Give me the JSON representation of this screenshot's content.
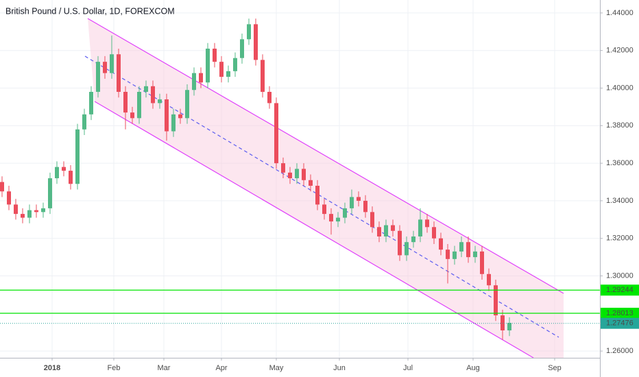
{
  "chart_data": {
    "type": "candlestick",
    "title": "British Pound / U.S. Dollar, 1D, FOREXCOM",
    "up_color": "#53b987",
    "down_color": "#eb4d5c",
    "grid": true,
    "candles": [
      [
        1.35,
        1.353,
        1.342,
        1.345
      ],
      [
        1.345,
        1.348,
        1.335,
        1.338
      ],
      [
        1.338,
        1.341,
        1.33,
        1.333
      ],
      [
        1.333,
        1.336,
        1.328,
        1.331
      ],
      [
        1.331,
        1.338,
        1.328,
        1.335
      ],
      [
        1.335,
        1.338,
        1.331,
        1.334
      ],
      [
        1.334,
        1.339,
        1.331,
        1.336
      ],
      [
        1.336,
        1.355,
        1.333,
        1.352
      ],
      [
        1.352,
        1.361,
        1.349,
        1.358
      ],
      [
        1.358,
        1.361,
        1.353,
        1.356
      ],
      [
        1.356,
        1.359,
        1.346,
        1.349
      ],
      [
        1.349,
        1.381,
        1.346,
        1.378
      ],
      [
        1.378,
        1.389,
        1.375,
        1.386
      ],
      [
        1.386,
        1.401,
        1.383,
        1.398
      ],
      [
        1.398,
        1.417,
        1.395,
        1.414
      ],
      [
        1.414,
        1.417,
        1.405,
        1.408
      ],
      [
        1.408,
        1.428,
        1.405,
        1.418
      ],
      [
        1.418,
        1.421,
        1.395,
        1.398
      ],
      [
        1.398,
        1.401,
        1.378,
        1.387
      ],
      [
        1.387,
        1.39,
        1.381,
        1.384
      ],
      [
        1.384,
        1.401,
        1.381,
        1.398
      ],
      [
        1.398,
        1.404,
        1.395,
        1.401
      ],
      [
        1.401,
        1.404,
        1.389,
        1.392
      ],
      [
        1.392,
        1.397,
        1.389,
        1.394
      ],
      [
        1.394,
        1.397,
        1.372,
        1.377
      ],
      [
        1.377,
        1.389,
        1.374,
        1.386
      ],
      [
        1.386,
        1.389,
        1.381,
        1.384
      ],
      [
        1.384,
        1.402,
        1.381,
        1.399
      ],
      [
        1.399,
        1.411,
        1.396,
        1.408
      ],
      [
        1.408,
        1.411,
        1.4,
        1.403
      ],
      [
        1.403,
        1.424,
        1.4,
        1.421
      ],
      [
        1.421,
        1.424,
        1.411,
        1.414
      ],
      [
        1.414,
        1.417,
        1.403,
        1.406
      ],
      [
        1.406,
        1.412,
        1.403,
        1.409
      ],
      [
        1.409,
        1.419,
        1.406,
        1.416
      ],
      [
        1.416,
        1.429,
        1.413,
        1.426
      ],
      [
        1.426,
        1.437,
        1.423,
        1.434
      ],
      [
        1.434,
        1.437,
        1.412,
        1.415
      ],
      [
        1.415,
        1.418,
        1.395,
        1.398
      ],
      [
        1.398,
        1.401,
        1.389,
        1.392
      ],
      [
        1.392,
        1.395,
        1.357,
        1.36
      ],
      [
        1.36,
        1.363,
        1.352,
        1.355
      ],
      [
        1.355,
        1.358,
        1.349,
        1.352
      ],
      [
        1.352,
        1.36,
        1.349,
        1.357
      ],
      [
        1.357,
        1.36,
        1.348,
        1.351
      ],
      [
        1.351,
        1.354,
        1.345,
        1.348
      ],
      [
        1.348,
        1.351,
        1.335,
        1.338
      ],
      [
        1.338,
        1.341,
        1.33,
        1.333
      ],
      [
        1.333,
        1.336,
        1.322,
        1.329
      ],
      [
        1.329,
        1.334,
        1.326,
        1.331
      ],
      [
        1.331,
        1.339,
        1.328,
        1.336
      ],
      [
        1.336,
        1.346,
        1.333,
        1.342
      ],
      [
        1.342,
        1.345,
        1.337,
        1.34
      ],
      [
        1.34,
        1.343,
        1.331,
        1.334
      ],
      [
        1.334,
        1.337,
        1.323,
        1.326
      ],
      [
        1.326,
        1.329,
        1.318,
        1.321
      ],
      [
        1.321,
        1.33,
        1.318,
        1.327
      ],
      [
        1.327,
        1.33,
        1.321,
        1.324
      ],
      [
        1.324,
        1.327,
        1.308,
        1.311
      ],
      [
        1.311,
        1.321,
        1.308,
        1.318
      ],
      [
        1.318,
        1.324,
        1.315,
        1.321
      ],
      [
        1.321,
        1.336,
        1.318,
        1.33
      ],
      [
        1.33,
        1.333,
        1.323,
        1.326
      ],
      [
        1.326,
        1.329,
        1.317,
        1.32
      ],
      [
        1.32,
        1.323,
        1.311,
        1.314
      ],
      [
        1.314,
        1.317,
        1.296,
        1.309
      ],
      [
        1.309,
        1.316,
        1.306,
        1.313
      ],
      [
        1.313,
        1.321,
        1.31,
        1.318
      ],
      [
        1.318,
        1.321,
        1.307,
        1.31
      ],
      [
        1.31,
        1.316,
        1.307,
        1.313
      ],
      [
        1.313,
        1.316,
        1.298,
        1.301
      ],
      [
        1.301,
        1.304,
        1.292,
        1.295
      ],
      [
        1.295,
        1.298,
        1.276,
        1.279
      ],
      [
        1.279,
        1.282,
        1.266,
        1.271
      ],
      [
        1.271,
        1.278,
        1.268,
        1.275
      ]
    ],
    "xlim": [
      -0.3,
      87.2
    ],
    "xticks": [
      {
        "value": 7.3,
        "label": "2018"
      },
      {
        "value": 16.3,
        "label": "Feb"
      },
      {
        "value": 23.6,
        "label": "Mar"
      },
      {
        "value": 32.0,
        "label": "Apr"
      },
      {
        "value": 40.0,
        "label": "May"
      },
      {
        "value": 49.2,
        "label": "Jun"
      },
      {
        "value": 59.2,
        "label": "Jul"
      },
      {
        "value": 68.7,
        "label": "Aug"
      },
      {
        "value": 80.6,
        "label": "Sep"
      }
    ],
    "ylim": [
      1.2564,
      1.4469
    ],
    "yticks": [
      {
        "value": 1.26,
        "label": "1.26000"
      },
      {
        "value": 1.28,
        "label": "1.28000"
      },
      {
        "value": 1.3,
        "label": "1.30000"
      },
      {
        "value": 1.32,
        "label": "1.32000"
      },
      {
        "value": 1.34,
        "label": "1.34000"
      },
      {
        "value": 1.36,
        "label": "1.36000"
      },
      {
        "value": 1.38,
        "label": "1.38000"
      },
      {
        "value": 1.4,
        "label": "1.40000"
      },
      {
        "value": 1.42,
        "label": "1.42000"
      },
      {
        "value": 1.44,
        "label": "1.44000"
      }
    ],
    "levels": [
      {
        "value": 1.29244,
        "label": "1.29244",
        "color": "#00e600"
      },
      {
        "value": 1.28013,
        "label": "1.28013",
        "color": "#00e600"
      }
    ],
    "last_price": {
      "value": 1.27476,
      "label": "1.27476",
      "color": "#26a69a"
    }
  }
}
